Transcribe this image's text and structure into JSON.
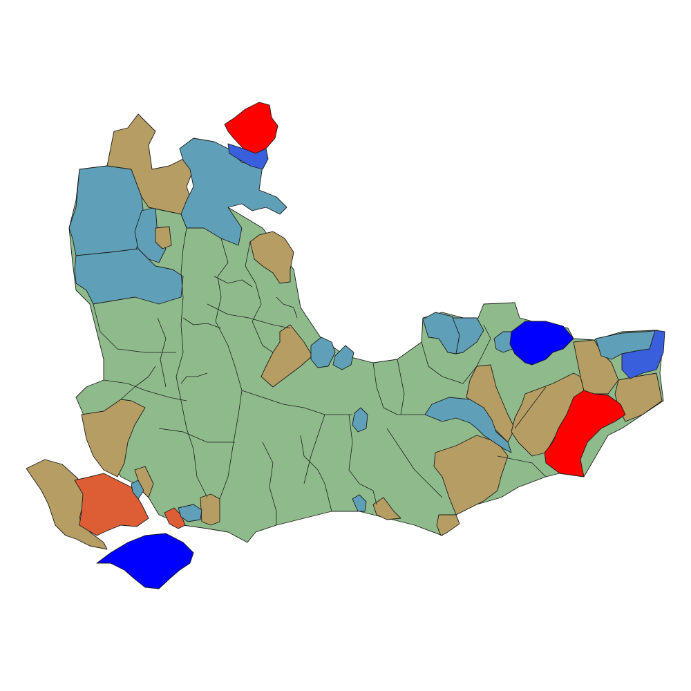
{
  "map": {
    "type": "choropleth",
    "title": "",
    "legend": null,
    "palette": {
      "background": "#ffffff",
      "border": "#1a1a1a",
      "green": "#8fbb8c",
      "tan": "#b59d63",
      "steel_blue": "#5fa0b8",
      "royal_blue": "#3a5fdc",
      "blue": "#0000ff",
      "red": "#ff0000",
      "orange_red": "#dd5d35"
    },
    "categories": [
      {
        "name": "green",
        "color": "#8fbb8c"
      },
      {
        "name": "tan",
        "color": "#b59d63"
      },
      {
        "name": "steel-blue",
        "color": "#5fa0b8"
      },
      {
        "name": "royal-blue",
        "color": "#3a5fdc"
      },
      {
        "name": "blue",
        "color": "#0000ff"
      },
      {
        "name": "red",
        "color": "#ff0000"
      },
      {
        "name": "orange-red",
        "color": "#dd5d35"
      }
    ]
  }
}
